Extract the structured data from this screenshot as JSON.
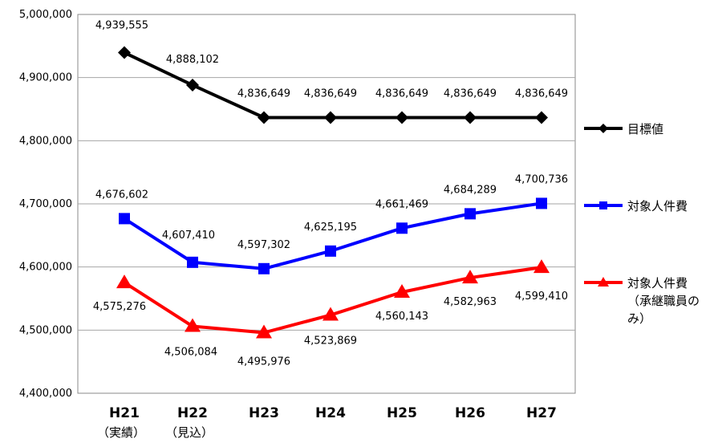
{
  "chart_data": {
    "type": "line",
    "categories": [
      "H21",
      "H22",
      "H23",
      "H24",
      "H25",
      "H26",
      "H27"
    ],
    "category_sublabels": [
      "（実績）",
      "（見込）",
      "",
      "",
      "",
      "",
      ""
    ],
    "ylim": [
      4400000,
      5000000
    ],
    "yticks": [
      "4,400,000",
      "4,500,000",
      "4,600,000",
      "4,700,000",
      "4,800,000",
      "4,900,000",
      "5,000,000"
    ],
    "grid": true,
    "legend_position": "right",
    "series": [
      {
        "name": "目標値",
        "color": "#000000",
        "marker": "diamond",
        "values": [
          4939555,
          4888102,
          4836649,
          4836649,
          4836649,
          4836649,
          4836649
        ],
        "labels": [
          "4,939,555",
          "4,888,102",
          "4,836,649",
          "4,836,649",
          "4,836,649",
          "4,836,649",
          "4,836,649"
        ]
      },
      {
        "name": "対象人件費",
        "color": "#0000ff",
        "marker": "square",
        "values": [
          4676602,
          4607410,
          4597302,
          4625195,
          4661469,
          4684289,
          4700736
        ],
        "labels": [
          "4,676,602",
          "4,607,410",
          "4,597,302",
          "4,625,195",
          "4,661,469",
          "4,684,289",
          "4,700,736"
        ]
      },
      {
        "name": "対象人件費（承継職員のみ）",
        "legend_lines": [
          "対象人件費",
          "（承継職員の",
          "み）"
        ],
        "color": "#ff0000",
        "marker": "triangle",
        "values": [
          4575276,
          4506084,
          4495976,
          4523869,
          4560143,
          4582963,
          4599410
        ],
        "labels": [
          "4,575,276",
          "4,506,084",
          "4,495,976",
          "4,523,869",
          "4,560,143",
          "4,582,963",
          "4,599,410"
        ]
      }
    ]
  }
}
